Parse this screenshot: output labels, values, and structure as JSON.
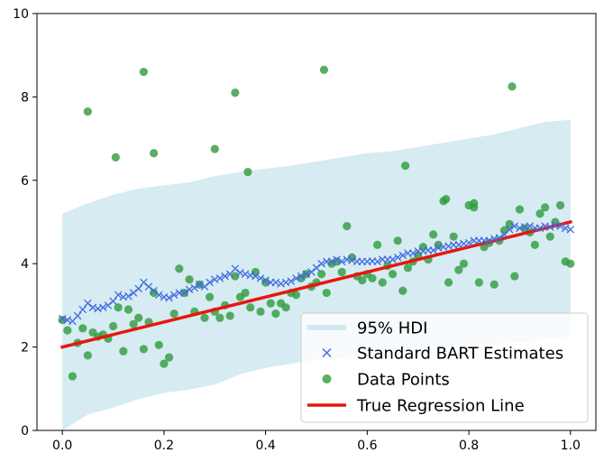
{
  "chart_data": {
    "type": "line",
    "title": "",
    "xlabel": "",
    "ylabel": "",
    "xlim": [
      -0.05,
      1.05
    ],
    "ylim": [
      0,
      10
    ],
    "xticks": [
      0.0,
      0.2,
      0.4,
      0.6,
      0.8,
      1.0
    ],
    "xtick_labels": [
      "0.0",
      "0.2",
      "0.4",
      "0.6",
      "0.8",
      "1.0"
    ],
    "yticks": [
      0,
      2,
      4,
      6,
      8,
      10
    ],
    "ytick_labels": [
      "0",
      "2",
      "4",
      "6",
      "8",
      "10"
    ],
    "grid": false,
    "legend_position": "lower-right",
    "legend": [
      {
        "label": "95% HDI",
        "kind": "band",
        "color": "#add8e6"
      },
      {
        "label": "Standard BART Estimates",
        "kind": "x-marker",
        "color": "#4169e1"
      },
      {
        "label": "Data Points",
        "kind": "circle",
        "color": "#2e9b3b"
      },
      {
        "label": "True Regression Line",
        "kind": "line",
        "color": "#e8160c"
      }
    ],
    "hdi_band": {
      "x": [
        0.0,
        0.05,
        0.1,
        0.15,
        0.2,
        0.25,
        0.3,
        0.35,
        0.4,
        0.45,
        0.5,
        0.55,
        0.6,
        0.65,
        0.7,
        0.75,
        0.8,
        0.85,
        0.9,
        0.95,
        1.0
      ],
      "upper": [
        5.2,
        5.45,
        5.65,
        5.8,
        5.88,
        5.95,
        6.1,
        6.2,
        6.28,
        6.35,
        6.45,
        6.55,
        6.65,
        6.7,
        6.8,
        6.9,
        7.0,
        7.1,
        7.25,
        7.4,
        7.45
      ],
      "lower": [
        0.0,
        0.38,
        0.55,
        0.75,
        0.9,
        0.98,
        1.1,
        1.35,
        1.5,
        1.6,
        1.7,
        1.75,
        1.82,
        1.9,
        1.98,
        2.02,
        2.05,
        2.08,
        2.12,
        2.2,
        2.25
      ]
    },
    "true_line": {
      "x": [
        0.0,
        1.0
      ],
      "y": [
        2.0,
        5.0
      ]
    },
    "bart_estimates": {
      "x": [
        0.0,
        0.01,
        0.02,
        0.03,
        0.04,
        0.05,
        0.06,
        0.07,
        0.08,
        0.09,
        0.1,
        0.11,
        0.12,
        0.13,
        0.14,
        0.15,
        0.16,
        0.17,
        0.18,
        0.19,
        0.2,
        0.21,
        0.22,
        0.23,
        0.24,
        0.25,
        0.26,
        0.27,
        0.28,
        0.29,
        0.3,
        0.31,
        0.32,
        0.33,
        0.34,
        0.35,
        0.36,
        0.37,
        0.38,
        0.39,
        0.4,
        0.41,
        0.42,
        0.43,
        0.44,
        0.45,
        0.46,
        0.47,
        0.48,
        0.49,
        0.5,
        0.51,
        0.52,
        0.53,
        0.54,
        0.55,
        0.56,
        0.57,
        0.58,
        0.59,
        0.6,
        0.61,
        0.62,
        0.63,
        0.64,
        0.65,
        0.66,
        0.67,
        0.68,
        0.69,
        0.7,
        0.71,
        0.72,
        0.73,
        0.74,
        0.75,
        0.76,
        0.77,
        0.78,
        0.79,
        0.8,
        0.81,
        0.82,
        0.83,
        0.84,
        0.85,
        0.86,
        0.87,
        0.88,
        0.89,
        0.9,
        0.91,
        0.92,
        0.93,
        0.94,
        0.95,
        0.96,
        0.97,
        0.98,
        0.99,
        1.0
      ],
      "y": [
        2.68,
        2.65,
        2.62,
        2.75,
        2.9,
        3.05,
        2.95,
        2.92,
        2.95,
        3.0,
        3.1,
        3.25,
        3.2,
        3.22,
        3.3,
        3.4,
        3.55,
        3.45,
        3.35,
        3.25,
        3.2,
        3.18,
        3.25,
        3.3,
        3.3,
        3.38,
        3.42,
        3.5,
        3.45,
        3.55,
        3.62,
        3.65,
        3.7,
        3.75,
        3.88,
        3.78,
        3.75,
        3.72,
        3.7,
        3.65,
        3.6,
        3.55,
        3.55,
        3.52,
        3.55,
        3.58,
        3.65,
        3.7,
        3.75,
        3.8,
        3.9,
        4.0,
        4.05,
        4.05,
        4.1,
        4.05,
        4.1,
        4.08,
        4.05,
        4.05,
        4.05,
        4.06,
        4.05,
        4.1,
        4.1,
        4.1,
        4.15,
        4.2,
        4.25,
        4.25,
        4.3,
        4.3,
        4.32,
        4.32,
        4.38,
        4.4,
        4.42,
        4.45,
        4.45,
        4.48,
        4.5,
        4.55,
        4.55,
        4.55,
        4.55,
        4.6,
        4.62,
        4.7,
        4.82,
        4.9,
        4.85,
        4.88,
        4.9,
        4.85,
        4.85,
        4.9,
        4.88,
        4.92,
        4.9,
        4.85,
        4.82
      ]
    },
    "data_points": {
      "x": [
        0.0,
        0.01,
        0.02,
        0.03,
        0.04,
        0.05,
        0.06,
        0.07,
        0.08,
        0.09,
        0.1,
        0.11,
        0.12,
        0.13,
        0.14,
        0.15,
        0.16,
        0.17,
        0.18,
        0.19,
        0.2,
        0.21,
        0.22,
        0.23,
        0.24,
        0.25,
        0.26,
        0.27,
        0.28,
        0.29,
        0.3,
        0.31,
        0.32,
        0.33,
        0.34,
        0.35,
        0.36,
        0.37,
        0.38,
        0.39,
        0.4,
        0.41,
        0.42,
        0.43,
        0.44,
        0.45,
        0.46,
        0.47,
        0.48,
        0.49,
        0.5,
        0.51,
        0.52,
        0.53,
        0.54,
        0.55,
        0.56,
        0.57,
        0.58,
        0.59,
        0.6,
        0.61,
        0.62,
        0.63,
        0.64,
        0.65,
        0.66,
        0.67,
        0.68,
        0.69,
        0.7,
        0.71,
        0.72,
        0.73,
        0.74,
        0.75,
        0.76,
        0.77,
        0.78,
        0.79,
        0.8,
        0.81,
        0.82,
        0.83,
        0.84,
        0.85,
        0.86,
        0.87,
        0.88,
        0.89,
        0.9,
        0.91,
        0.92,
        0.93,
        0.94,
        0.95,
        0.96,
        0.97,
        0.98,
        0.99,
        1.0,
        0.05,
        0.105,
        0.16,
        0.18,
        0.3,
        0.34,
        0.365,
        0.515,
        0.675,
        0.755,
        0.81,
        0.885
      ],
      "y": [
        2.65,
        2.4,
        1.3,
        2.1,
        2.45,
        1.8,
        2.35,
        2.25,
        2.3,
        2.2,
        2.5,
        2.95,
        1.9,
        2.9,
        2.55,
        2.7,
        1.95,
        2.6,
        3.3,
        2.05,
        1.6,
        1.75,
        2.8,
        3.88,
        3.3,
        3.62,
        2.85,
        3.5,
        2.7,
        3.2,
        2.85,
        2.7,
        3.0,
        2.75,
        3.7,
        3.2,
        3.3,
        2.95,
        3.8,
        2.85,
        3.55,
        3.05,
        2.8,
        3.05,
        2.95,
        3.3,
        3.25,
        3.65,
        3.75,
        3.45,
        3.55,
        3.75,
        3.3,
        4.0,
        4.05,
        3.8,
        4.9,
        4.15,
        3.7,
        3.6,
        3.75,
        3.65,
        4.45,
        3.55,
        3.95,
        3.75,
        4.55,
        3.35,
        3.9,
        4.05,
        4.2,
        4.4,
        4.1,
        4.7,
        4.45,
        5.5,
        3.55,
        4.65,
        3.85,
        4.0,
        5.4,
        5.35,
        3.55,
        4.4,
        4.5,
        3.5,
        4.55,
        4.8,
        4.95,
        3.7,
        5.3,
        4.85,
        4.75,
        4.45,
        5.2,
        5.35,
        4.65,
        5.0,
        5.4,
        4.05,
        4.0,
        7.65,
        6.55,
        8.6,
        6.65,
        6.75,
        8.1,
        6.2,
        8.65,
        6.35,
        5.55,
        5.45,
        8.25
      ]
    }
  }
}
